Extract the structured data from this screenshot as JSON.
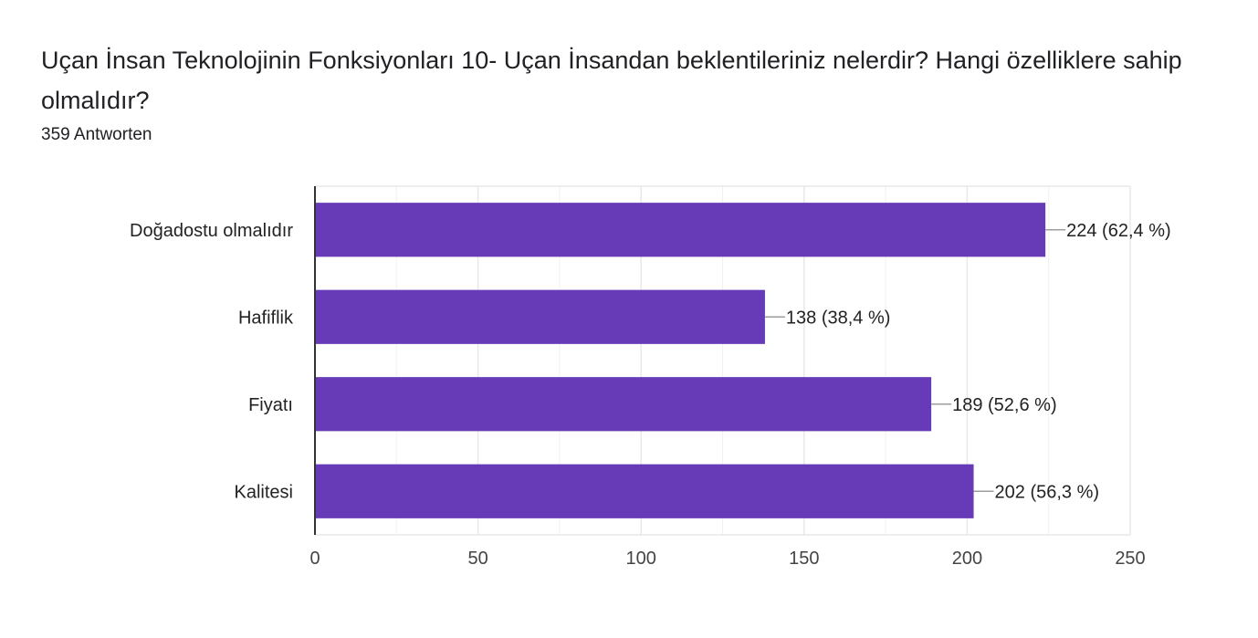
{
  "header": {
    "title": "Uçan İnsan Teknolojinin Fonksiyonları  10- Uçan İnsandan beklentileriniz nelerdir? Hangi özelliklere sahip olmalıdır?",
    "response_count": "359 Antworten"
  },
  "colors": {
    "bar": "#673ab7",
    "grid": "#e8e8e8",
    "axis": "#333333",
    "text": "#222222"
  },
  "chart_data": {
    "type": "bar",
    "orientation": "horizontal",
    "categories": [
      "Doğadostu olmalıdır",
      "Hafiflik",
      "Fiyatı",
      "Kalitesi"
    ],
    "values": [
      224,
      138,
      189,
      202
    ],
    "value_labels": [
      "224 (62,4 %)",
      "138 (38,4 %)",
      "189 (52,6 %)",
      "202 (56,3 %)"
    ],
    "xlim": [
      0,
      250
    ],
    "xticks": [
      0,
      50,
      100,
      150,
      200,
      250
    ],
    "grid": true,
    "legend": "none"
  }
}
